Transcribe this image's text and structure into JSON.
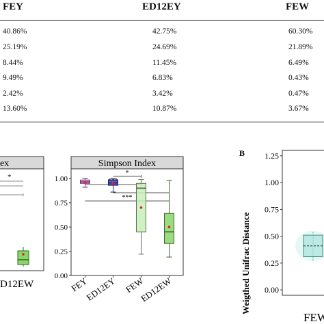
{
  "table": {
    "headers": [
      "FEY",
      "ED12EY",
      "FEW"
    ],
    "rows": [
      [
        "40.86%",
        "42.75%",
        "60.30%"
      ],
      [
        "25.19%",
        "24.69%",
        "21.89%"
      ],
      [
        "8.44%",
        "11.45%",
        "6.49%"
      ],
      [
        "9.49%",
        "6.83%",
        "0.43%"
      ],
      [
        "2.42%",
        "3.42%",
        "0.47%"
      ],
      [
        "13.60%",
        "10.87%",
        "3.67%"
      ]
    ]
  },
  "left_panel": {
    "title_fragment": "ex",
    "sig": "*",
    "tick_label": "D12EW"
  },
  "panel_b_label": "B",
  "chart_data": [
    {
      "type": "box",
      "title": "Simpson Index",
      "categories": [
        "FEY",
        "ED12EY",
        "FEW",
        "ED12EW"
      ],
      "ylim": [
        0,
        1.1
      ],
      "yticks": [
        0.0,
        0.25,
        0.5,
        0.75,
        1.0
      ],
      "ytick_labels": [
        "0.00",
        "0.25",
        "0.50",
        "0.75",
        "1.00"
      ],
      "boxes": [
        {
          "name": "FEY",
          "min": 0.91,
          "q1": 0.95,
          "median": 0.965,
          "q3": 0.985,
          "max": 1.0,
          "mean": 0.96,
          "color": "#e080e0"
        },
        {
          "name": "ED12EY",
          "min": 0.86,
          "q1": 0.93,
          "median": 0.955,
          "q3": 0.985,
          "max": 1.0,
          "mean": 0.95,
          "color": "#4040c0"
        },
        {
          "name": "FEW",
          "min": 0.22,
          "q1": 0.45,
          "median": 0.9,
          "q3": 0.95,
          "max": 0.99,
          "mean": 0.7,
          "color": "#c8eeb8"
        },
        {
          "name": "ED12EW",
          "min": 0.19,
          "q1": 0.33,
          "median": 0.45,
          "q3": 0.64,
          "max": 0.98,
          "mean": 0.5,
          "color": "#8bd66b"
        }
      ],
      "significance": [
        {
          "from": "ED12EY",
          "to": "FEW",
          "label": "*"
        },
        {
          "from": "FEY",
          "to": "FEW",
          "label": "***"
        },
        {
          "from": "ED12EY",
          "to": "ED12EW",
          "label": "***"
        },
        {
          "from": "FEY",
          "to": "ED12EW",
          "label": "***"
        }
      ]
    },
    {
      "type": "box",
      "ylabel": "Weigthed Unifrac Distance",
      "categories": [
        "FEW"
      ],
      "ylim": [
        -0.05,
        1.3
      ],
      "yticks": [
        0.0,
        0.25,
        0.5,
        0.75,
        1.0,
        1.25
      ],
      "ytick_labels": [
        "0.00",
        "0.25",
        "0.50",
        "0.75",
        "1.00",
        "1.25"
      ],
      "boxes": [
        {
          "name": "FEW",
          "min": 0.26,
          "q1": 0.31,
          "median": 0.41,
          "q3": 0.51,
          "max": 0.54,
          "color": "#9fe0d8"
        }
      ]
    }
  ]
}
